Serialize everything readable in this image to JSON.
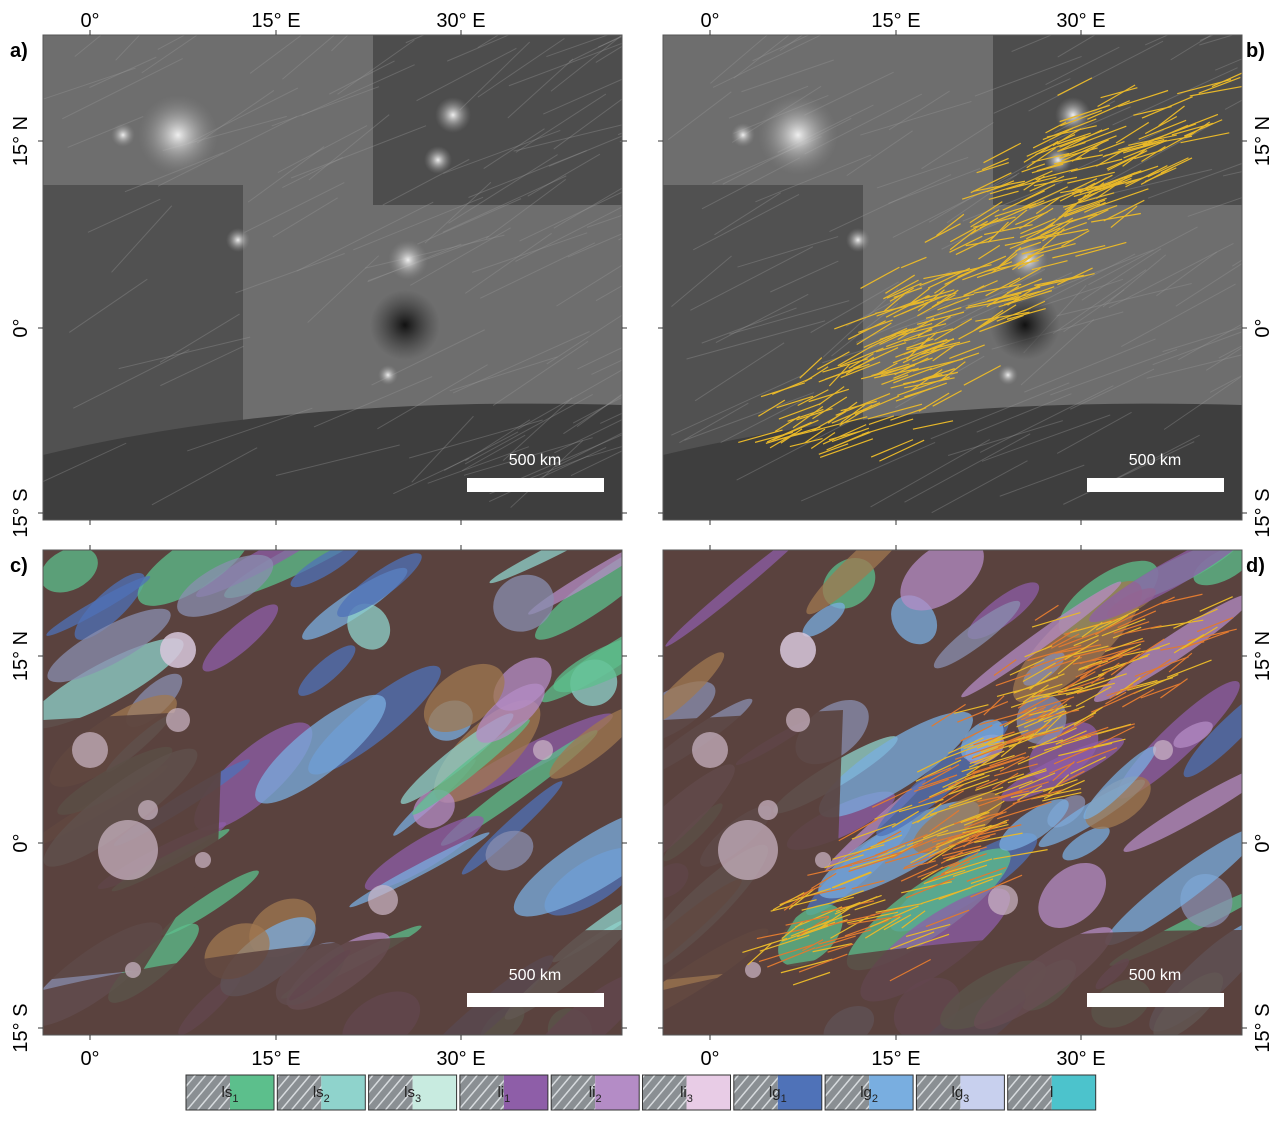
{
  "panels": [
    {
      "label": "a)",
      "scale_bar": "500 km"
    },
    {
      "label": "b)",
      "scale_bar": "500 km"
    },
    {
      "label": "c)",
      "scale_bar": "500 km"
    },
    {
      "label": "d)",
      "scale_bar": "500 km"
    }
  ],
  "x_ticks": [
    "0°",
    "15° E",
    "30° E"
  ],
  "y_ticks": [
    "15° N",
    "0°",
    "15° S"
  ],
  "legend": [
    {
      "label": "ls",
      "sub": "1",
      "color": "#5cbf8c"
    },
    {
      "label": "ls",
      "sub": "2",
      "color": "#8fd3cc"
    },
    {
      "label": "ls",
      "sub": "3",
      "color": "#c8ebe0"
    },
    {
      "label": "li",
      "sub": "1",
      "color": "#8e5ea8"
    },
    {
      "label": "li",
      "sub": "2",
      "color": "#b48cc6"
    },
    {
      "label": "li",
      "sub": "3",
      "color": "#e8cce6"
    },
    {
      "label": "lg",
      "sub": "1",
      "color": "#4f72b8"
    },
    {
      "label": "lg",
      "sub": "2",
      "color": "#79aee0"
    },
    {
      "label": "lg",
      "sub": "3",
      "color": "#c8d0ee"
    },
    {
      "label": "l",
      "color": "#4cc3cc"
    }
  ]
}
